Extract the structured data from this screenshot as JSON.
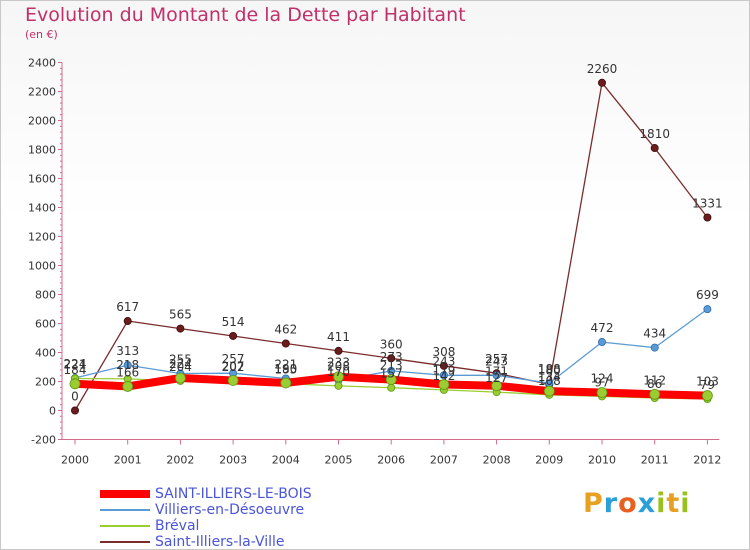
{
  "header": {
    "title": "Evolution du Montant de la Dette par Habitant",
    "subtitle": "(en €)"
  },
  "logo": {
    "letters": [
      "P",
      "r",
      "o",
      "x",
      "i",
      "t",
      "i"
    ],
    "colors": [
      "#e8a020",
      "#2aa0d8",
      "#e86020",
      "#2aa0d8",
      "#9ac020",
      "#e8a020",
      "#9ac020"
    ]
  },
  "chart_data": {
    "type": "line",
    "x": [
      "2000",
      "2001",
      "2002",
      "2003",
      "2004",
      "2005",
      "2006",
      "2007",
      "2008",
      "2009",
      "2010",
      "2011",
      "2012"
    ],
    "ylim": [
      -200,
      2400
    ],
    "yticks": [
      -200,
      0,
      200,
      400,
      600,
      800,
      1000,
      1200,
      1400,
      1600,
      1800,
      2000,
      2200,
      2400
    ],
    "grid": false,
    "legend_position": "bottom-left",
    "series": [
      {
        "name": "SAINT-ILLIERS-LE-BOIS",
        "color": "#ff0000",
        "values": [
          184,
          166,
          224,
          207,
          190,
          233,
          213,
          179,
          171,
          134,
          124,
          112,
          103
        ],
        "labels": [
          "184",
          "166",
          "224",
          "207",
          "190",
          "233",
          "213",
          "179",
          "171",
          "134",
          "124",
          "112",
          "103"
        ]
      },
      {
        "name": "Villiers-en-Désoeuvre",
        "color": "#5b9bd5",
        "values": [
          224,
          313,
          255,
          257,
          221,
          208,
          273,
          243,
          243,
          188,
          472,
          434,
          699
        ],
        "labels": [
          "224",
          "313",
          "255",
          "257",
          "221",
          "208",
          "273",
          "243",
          "243",
          "188",
          "472",
          "434",
          "699"
        ]
      },
      {
        "name": "Bréval",
        "color": "#9acd32",
        "values": [
          221,
          218,
          204,
          202,
          185,
          170,
          157,
          142,
          127,
          108,
          97,
          86,
          79
        ],
        "labels": [
          "221",
          "218",
          "204",
          "202",
          "185",
          "170",
          "157",
          "142",
          "127",
          "108",
          "97",
          "86",
          "79"
        ]
      },
      {
        "name": "Saint-Illiers-la-Ville",
        "color": "#7b2c2c",
        "values": [
          0,
          617,
          565,
          514,
          462,
          411,
          360,
          308,
          257,
          180,
          2260,
          1810,
          1331
        ],
        "labels": [
          "0",
          "617",
          "565",
          "514",
          "462",
          "411",
          "360",
          "308",
          "257",
          "180",
          "2260",
          "1810",
          "1331"
        ]
      }
    ]
  }
}
